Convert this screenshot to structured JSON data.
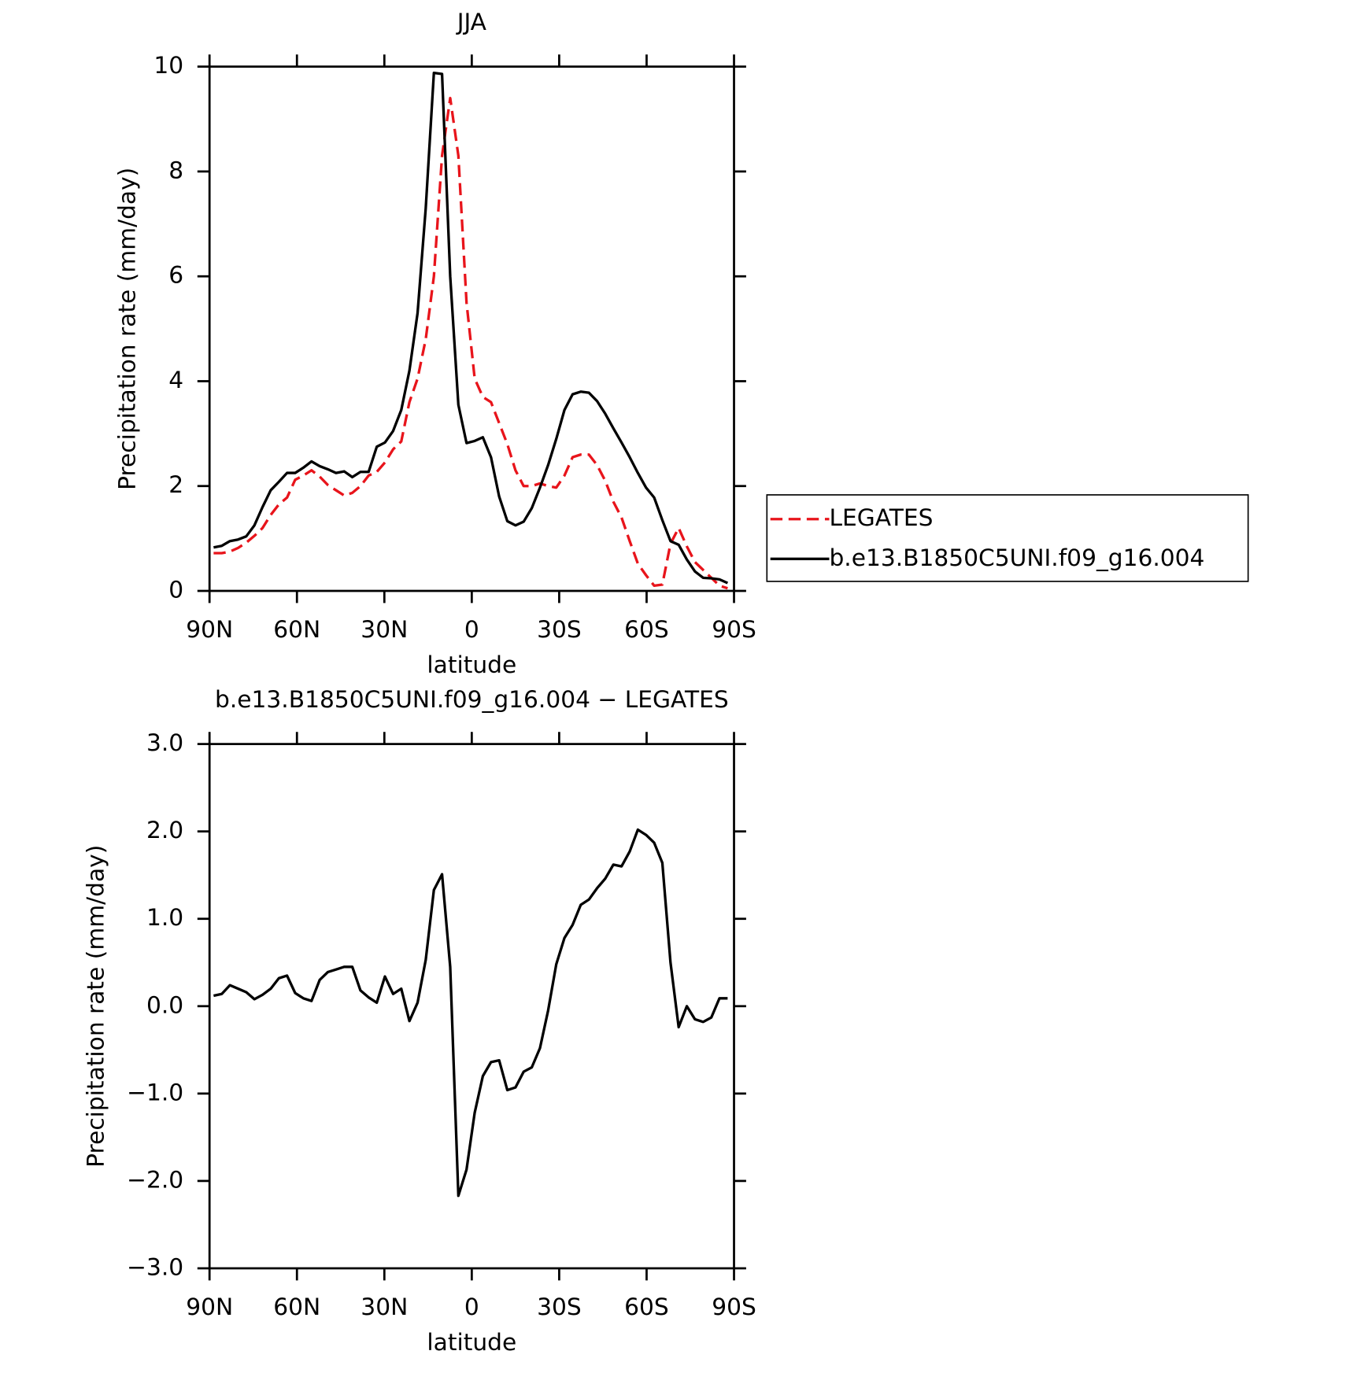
{
  "chart_data": [
    {
      "type": "line",
      "title": "JJA",
      "x_label": "latitude",
      "y_label": "Precipitation rate (mm/day)",
      "xlim": [
        90,
        -90
      ],
      "xticks": [
        {
          "value": 90,
          "label": "90N"
        },
        {
          "value": 60,
          "label": "60N"
        },
        {
          "value": 30,
          "label": "30N"
        },
        0,
        {
          "value": -30,
          "label": "30S"
        },
        {
          "value": -60,
          "label": "60S"
        },
        {
          "value": -90,
          "label": "90S"
        }
      ],
      "ylim": [
        0,
        10
      ],
      "yticks": [
        0,
        2,
        4,
        6,
        8,
        10
      ],
      "legend": "outside right",
      "x": [
        88.6,
        85.8,
        83,
        80.2,
        77.4,
        74.6,
        71.8,
        69,
        66.2,
        63.4,
        60.6,
        57.8,
        55,
        52.2,
        49.4,
        46.6,
        43.8,
        41,
        38.2,
        35.4,
        32.6,
        29.8,
        27,
        24.2,
        21.4,
        18.6,
        15.8,
        13,
        10.2,
        7.4,
        4.6,
        1.8,
        -1,
        -3.8,
        -6.6,
        -9.4,
        -12.2,
        -15,
        -17.8,
        -20.6,
        -23.4,
        -26.2,
        -29,
        -31.8,
        -34.6,
        -37.4,
        -40.2,
        -43,
        -45.8,
        -48.6,
        -51.4,
        -54.2,
        -57,
        -59.8,
        -62.6,
        -65.4,
        -68.2,
        -71,
        -73.8,
        -76.6,
        -79.4,
        -82.2,
        -85,
        -87.8
      ],
      "series": [
        {
          "name": "LEGATES",
          "color": "#e8141b",
          "dashed": true,
          "values": [
            0.72,
            0.72,
            0.75,
            0.82,
            0.92,
            1.05,
            1.2,
            1.45,
            1.65,
            1.78,
            2.12,
            2.2,
            2.3,
            2.18,
            2.02,
            1.92,
            1.82,
            1.87,
            2.0,
            2.2,
            2.27,
            2.45,
            2.7,
            2.85,
            3.6,
            4.05,
            4.8,
            6.0,
            8.3,
            9.4,
            8.3,
            5.5,
            4.05,
            3.7,
            3.6,
            3.2,
            2.8,
            2.3,
            2.0,
            2.0,
            2.05,
            2.0,
            1.97,
            2.2,
            2.55,
            2.6,
            2.6,
            2.4,
            2.1,
            1.7,
            1.4,
            0.95,
            0.52,
            0.3,
            0.1,
            0.12,
            0.9,
            1.2,
            0.85,
            0.55,
            0.4,
            0.25,
            0.1,
            0.05
          ]
        },
        {
          "name": "b.e13.B1850C5UNI.f09_g16.004",
          "color": "#000000",
          "dashed": false,
          "values": [
            0.83,
            0.86,
            0.95,
            0.98,
            1.04,
            1.25,
            1.6,
            1.92,
            2.08,
            2.25,
            2.25,
            2.35,
            2.47,
            2.38,
            2.32,
            2.25,
            2.28,
            2.17,
            2.27,
            2.27,
            2.75,
            2.83,
            3.05,
            3.45,
            4.2,
            5.3,
            7.3,
            9.88,
            9.86,
            6.0,
            3.55,
            2.82,
            2.86,
            2.93,
            2.55,
            1.8,
            1.33,
            1.25,
            1.32,
            1.58,
            1.97,
            2.4,
            2.9,
            3.45,
            3.75,
            3.8,
            3.78,
            3.62,
            3.38,
            3.1,
            2.83,
            2.55,
            2.25,
            1.97,
            1.78,
            1.35,
            0.95,
            0.88,
            0.6,
            0.37,
            0.25,
            0.24,
            0.22,
            0.15
          ]
        }
      ]
    },
    {
      "type": "line",
      "title": "b.e13.B1850C5UNI.f09_g16.004 − LEGATES",
      "x_label": "latitude",
      "y_label": "Precipitation rate (mm/day)",
      "xlim": [
        90,
        -90
      ],
      "xticks": [
        {
          "value": 90,
          "label": "90N"
        },
        {
          "value": 60,
          "label": "60N"
        },
        {
          "value": 30,
          "label": "30N"
        },
        0,
        {
          "value": -30,
          "label": "30S"
        },
        {
          "value": -60,
          "label": "60S"
        },
        {
          "value": -90,
          "label": "90S"
        }
      ],
      "ylim": [
        -3,
        3
      ],
      "yticks": [
        {
          "value": -3,
          "label": "−3.0"
        },
        {
          "value": -2,
          "label": "−2.0"
        },
        {
          "value": -1,
          "label": "−1.0"
        },
        {
          "value": 0,
          "label": "0.0"
        },
        {
          "value": 1,
          "label": "1.0"
        },
        {
          "value": 2,
          "label": "2.0"
        },
        {
          "value": 3,
          "label": "3.0"
        }
      ],
      "x": [
        88.6,
        85.8,
        83,
        80.2,
        77.4,
        74.6,
        71.8,
        69,
        66.2,
        63.4,
        60.6,
        57.8,
        55,
        52.2,
        49.4,
        46.6,
        43.8,
        41,
        38.2,
        35.4,
        32.6,
        29.8,
        27,
        24.2,
        21.4,
        18.6,
        15.8,
        13,
        10.2,
        7.4,
        4.6,
        1.8,
        -1,
        -3.8,
        -6.6,
        -9.4,
        -12.2,
        -15,
        -17.8,
        -20.6,
        -23.4,
        -26.2,
        -29,
        -31.8,
        -34.6,
        -37.4,
        -40.2,
        -43,
        -45.8,
        -48.6,
        -51.4,
        -54.2,
        -57,
        -59.8,
        -62.6,
        -65.4,
        -68.2,
        -71,
        -73.8,
        -76.6,
        -79.4,
        -82.2,
        -85,
        -87.8
      ],
      "series": [
        {
          "color": "#000000",
          "dashed": false,
          "values": [
            0.12,
            0.14,
            0.24,
            0.2,
            0.16,
            0.08,
            0.13,
            0.2,
            0.32,
            0.35,
            0.15,
            0.09,
            0.06,
            0.3,
            0.39,
            0.42,
            0.45,
            0.45,
            0.18,
            0.1,
            0.04,
            0.34,
            0.14,
            0.2,
            -0.17,
            0.04,
            0.53,
            1.33,
            1.51,
            0.45,
            -2.17,
            -1.87,
            -1.22,
            -0.8,
            -0.64,
            -0.62,
            -0.96,
            -0.93,
            -0.75,
            -0.7,
            -0.48,
            -0.05,
            0.48,
            0.78,
            0.93,
            1.16,
            1.22,
            1.35,
            1.46,
            1.62,
            1.6,
            1.77,
            2.02,
            1.96,
            1.87,
            1.64,
            0.5,
            -0.24,
            0.0,
            -0.15,
            -0.18,
            -0.13,
            0.09,
            0.09
          ]
        }
      ]
    }
  ]
}
